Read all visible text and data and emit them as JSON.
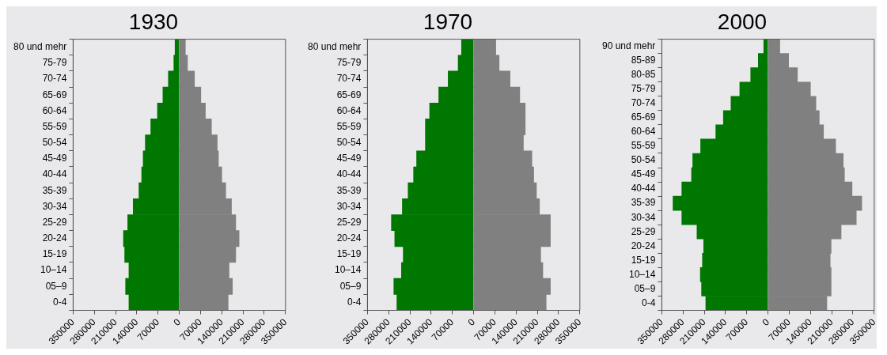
{
  "chart_data": [
    {
      "type": "bar",
      "title": "1930",
      "orientation": "horizontal",
      "stacked": true,
      "grid": false,
      "legend": false,
      "categories": [
        "80 und mehr",
        "75-79",
        "70-74",
        "65-69",
        "60-64",
        "55-59",
        "50-54",
        "45-49",
        "40-44",
        "35-39",
        "30-34",
        "25-29",
        "20-24",
        "15-19",
        "10–14",
        "05–9",
        "0-4"
      ],
      "series": [
        {
          "color": "#007700",
          "values": [
            -14000,
            -18000,
            -36000,
            -54000,
            -72000,
            -94000,
            -112000,
            -119000,
            -124000,
            -133000,
            -152000,
            -170000,
            -184000,
            -180000,
            -166000,
            -177000,
            -166000
          ]
        },
        {
          "color": "#808080",
          "values": [
            20000,
            27000,
            50000,
            71000,
            86000,
            106000,
            125000,
            129000,
            140000,
            153000,
            172000,
            186000,
            197000,
            186000,
            164000,
            175000,
            161000
          ]
        }
      ],
      "xlim": [
        -350000,
        350000
      ],
      "xticks": [
        {
          "value": -350000,
          "label": "350000"
        },
        {
          "value": -280000,
          "label": "280000"
        },
        {
          "value": -210000,
          "label": "210000"
        },
        {
          "value": -140000,
          "label": "140000"
        },
        {
          "value": -70000,
          "label": "70000"
        },
        0,
        70000,
        140000,
        210000,
        280000,
        350000
      ]
    },
    {
      "type": "bar",
      "title": "1970",
      "orientation": "horizontal",
      "stacked": true,
      "grid": false,
      "legend": false,
      "categories": [
        "80 und mehr",
        "75-79",
        "70-74",
        "65-69",
        "60-64",
        "55-59",
        "50-54",
        "45-49",
        "40-44",
        "35-39",
        "30-34",
        "25-29",
        "20-24",
        "15-19",
        "10–14",
        "05–9",
        "0-4"
      ],
      "series": [
        {
          "color": "#007700",
          "values": [
            -40000,
            -51000,
            -84000,
            -115000,
            -145000,
            -159000,
            -159000,
            -188000,
            -198000,
            -216000,
            -235000,
            -271000,
            -260000,
            -232000,
            -238000,
            -263000,
            -253000
          ]
        },
        {
          "color": "#808080",
          "values": [
            73000,
            84000,
            120000,
            152000,
            170000,
            170000,
            164000,
            192000,
            198000,
            207000,
            217000,
            253000,
            253000,
            221000,
            228000,
            253000,
            239000
          ]
        }
      ],
      "xlim": [
        -350000,
        350000
      ],
      "xticks": [
        {
          "value": -350000,
          "label": "350000"
        },
        {
          "value": -280000,
          "label": "280000"
        },
        {
          "value": -210000,
          "label": "210000"
        },
        {
          "value": -140000,
          "label": "140000"
        },
        {
          "value": -70000,
          "label": "70000"
        },
        0,
        70000,
        140000,
        210000,
        280000,
        350000
      ]
    },
    {
      "type": "bar",
      "title": "2000",
      "orientation": "horizontal",
      "stacked": true,
      "grid": false,
      "legend": false,
      "categories": [
        "90 und mehr",
        "85-89",
        "80-85",
        "75-79",
        "70-74",
        "65-69",
        "60-64",
        "55-59",
        "50-54",
        "45-49",
        "40-44",
        "35-39",
        "30-34",
        "25-29",
        "20-24",
        "15-19",
        "10–14",
        "05–9",
        "0-4"
      ],
      "series": [
        {
          "color": "#007700",
          "values": [
            -14000,
            -32000,
            -57000,
            -93000,
            -122000,
            -147000,
            -172000,
            -222000,
            -248000,
            -252000,
            -284000,
            -313000,
            -284000,
            -234000,
            -212000,
            -216000,
            -223000,
            -219000,
            -205000
          ]
        },
        {
          "color": "#808080",
          "values": [
            39000,
            68000,
            97000,
            140000,
            158000,
            169000,
            183000,
            223000,
            248000,
            252000,
            277000,
            309000,
            291000,
            241000,
            208000,
            205000,
            208000,
            208000,
            194000
          ]
        }
      ],
      "xlim": [
        -350000,
        350000
      ],
      "xticks": [
        {
          "value": -350000,
          "label": "350000"
        },
        {
          "value": -280000,
          "label": "280000"
        },
        {
          "value": -210000,
          "label": "210000"
        },
        {
          "value": -140000,
          "label": "140000"
        },
        {
          "value": -70000,
          "label": "70000"
        },
        0,
        70000,
        140000,
        210000,
        280000,
        350000
      ]
    }
  ]
}
